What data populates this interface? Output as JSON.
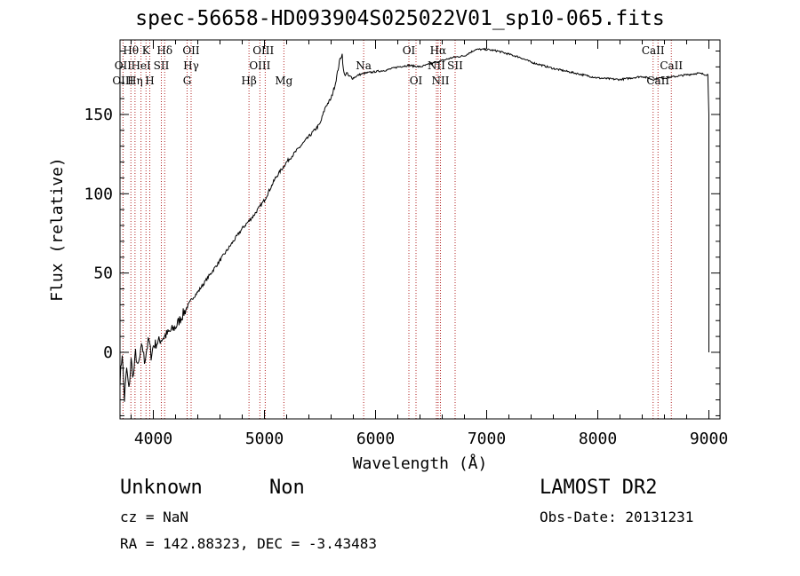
{
  "header": {
    "title": "spec-56658-HD093904S025022V01_sp10-065.fits"
  },
  "info": {
    "object_class": "Unknown",
    "object_subclass": "Non",
    "survey": "LAMOST DR2",
    "redshift": "cz = NaN",
    "obs_date": "Obs-Date: 20131231",
    "coordinates": "RA = 142.88323, DEC =  -3.43483"
  },
  "colors": {
    "spectrum": "#000000",
    "line_markers": "#b22222",
    "axes": "#000000"
  },
  "chart_data": {
    "type": "line",
    "title": "spec-56658-HD093904S025022V01_sp10-065.fits",
    "xlabel": "Wavelength (Å)",
    "ylabel": "Flux (relative)",
    "xlim": [
      3700,
      9100
    ],
    "ylim": [
      -42,
      197
    ],
    "xticks": [
      4000,
      5000,
      6000,
      7000,
      8000,
      9000
    ],
    "yticks": [
      0,
      50,
      100,
      150
    ],
    "grid": false,
    "series": [
      {
        "x": [
          3700,
          3720,
          3740,
          3760,
          3780,
          3800,
          3820,
          3840,
          3860,
          3880,
          3900,
          3920,
          3940,
          3960,
          3980,
          4000,
          4050,
          4100,
          4150,
          4200,
          4250,
          4300,
          4350,
          4400,
          4450,
          4500,
          4600,
          4700,
          4800,
          4900,
          5000,
          5100,
          5200,
          5300,
          5400,
          5500,
          5550,
          5600,
          5640,
          5680,
          5700,
          5710,
          5720,
          5740,
          5760,
          5800,
          5850,
          5900,
          6000,
          6100,
          6200,
          6300,
          6400,
          6500,
          6600,
          6700,
          6800,
          6900,
          7000,
          7100,
          7200,
          7300,
          7400,
          7600,
          7800,
          8000,
          8200,
          8400,
          8500,
          8550,
          8600,
          8700,
          8800,
          8900,
          8990,
          9000,
          9000
        ],
        "y": [
          -18,
          0,
          -30,
          -10,
          -24,
          -5,
          -16,
          0,
          -10,
          -3,
          5,
          -6,
          2,
          8,
          -2,
          4,
          7,
          10,
          13,
          16,
          22,
          28,
          34,
          38,
          43,
          48,
          58,
          68,
          78,
          86,
          96,
          110,
          120,
          128,
          136,
          144,
          155,
          160,
          170,
          185,
          188,
          178,
          175,
          176,
          174,
          173,
          175,
          176,
          177,
          178,
          180,
          181,
          180,
          182,
          184,
          186,
          187,
          191,
          191,
          190,
          188,
          186,
          183,
          179,
          176,
          173,
          172,
          174,
          172,
          173,
          173,
          174,
          175,
          176,
          175,
          150,
          0
        ]
      }
    ],
    "annotations": [
      {
        "text": "Hθ",
        "x": 3798,
        "row": 1
      },
      {
        "text": "K",
        "x": 3934,
        "row": 1
      },
      {
        "text": "Hδ",
        "x": 4102,
        "row": 1
      },
      {
        "text": "OII",
        "x": 4340,
        "row": 1
      },
      {
        "text": "OIII",
        "x": 4990,
        "row": 1
      },
      {
        "text": "OI",
        "x": 6300,
        "row": 1
      },
      {
        "text": "Hα",
        "x": 6563,
        "row": 1
      },
      {
        "text": "CaII",
        "x": 8498,
        "row": 1
      },
      {
        "text": "OII",
        "x": 3727,
        "row": 2
      },
      {
        "text": "HeI",
        "x": 3889,
        "row": 2
      },
      {
        "text": "SII",
        "x": 4072,
        "row": 2
      },
      {
        "text": "Hγ",
        "x": 4340,
        "row": 2
      },
      {
        "text": "OIII",
        "x": 4959,
        "row": 2
      },
      {
        "text": "Na",
        "x": 5893,
        "row": 2
      },
      {
        "text": "NII",
        "x": 6548,
        "row": 2
      },
      {
        "text": "SII",
        "x": 6716,
        "row": 2
      },
      {
        "text": "CaII",
        "x": 8662,
        "row": 2
      },
      {
        "text": "OIII",
        "x": 3727,
        "row": 3
      },
      {
        "text": "Hη",
        "x": 3835,
        "row": 3
      },
      {
        "text": "H",
        "x": 3968,
        "row": 3
      },
      {
        "text": "G",
        "x": 4304,
        "row": 3
      },
      {
        "text": "Hβ",
        "x": 4861,
        "row": 3
      },
      {
        "text": "Mg",
        "x": 5175,
        "row": 3
      },
      {
        "text": "OI",
        "x": 6364,
        "row": 3
      },
      {
        "text": "NII",
        "x": 6584,
        "row": 3
      },
      {
        "text": "CaII",
        "x": 8542,
        "row": 3
      }
    ],
    "line_markers": [
      3727,
      3798,
      3835,
      3889,
      3934,
      3968,
      4072,
      4102,
      4304,
      4340,
      4861,
      4959,
      5007,
      5175,
      5893,
      6300,
      6364,
      6548,
      6563,
      6584,
      6716,
      8498,
      8542,
      8662
    ]
  }
}
